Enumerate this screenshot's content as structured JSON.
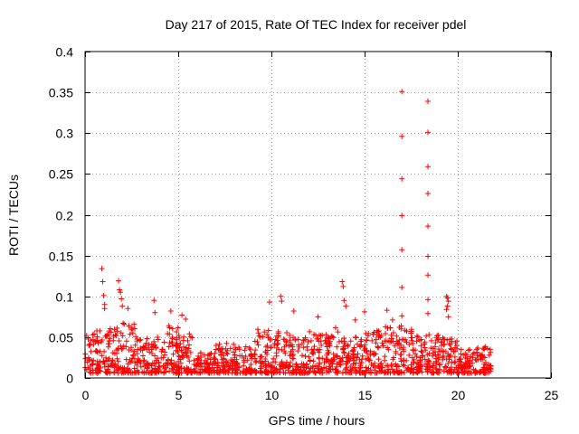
{
  "chart_data": {
    "type": "scatter",
    "title": "Day 217 of 2015, Rate Of TEC Index for receiver pdel",
    "xlabel": "GPS time / hours",
    "ylabel": "ROTI / TECUs",
    "xlim": [
      0,
      25
    ],
    "ylim": [
      0,
      0.4
    ],
    "xticks": [
      0,
      5,
      10,
      15,
      20,
      25
    ],
    "yticks": [
      0,
      0.05,
      0.1,
      0.15,
      0.2,
      0.25,
      0.3,
      0.35,
      0.4
    ],
    "xtick_labels": [
      "0",
      "5",
      "10",
      "15",
      "20",
      "25"
    ],
    "ytick_labels": [
      "0",
      "0.05",
      "0.1",
      "0.15",
      "0.2",
      "0.25",
      "0.3",
      "0.35",
      "0.4"
    ],
    "grid": true,
    "marker": "+",
    "color": "#ff0000",
    "series": [
      {
        "name": "ROTI",
        "points": [
          [
            0.9,
            0.134
          ],
          [
            0.95,
            0.118
          ],
          [
            1.0,
            0.101
          ],
          [
            1.05,
            0.09
          ],
          [
            1.05,
            0.085
          ],
          [
            1.8,
            0.119
          ],
          [
            1.85,
            0.108
          ],
          [
            1.9,
            0.105
          ],
          [
            1.95,
            0.097
          ],
          [
            2.0,
            0.088
          ],
          [
            2.3,
            0.085
          ],
          [
            3.7,
            0.095
          ],
          [
            3.75,
            0.08
          ],
          [
            4.6,
            0.082
          ],
          [
            5.2,
            0.077
          ],
          [
            5.4,
            0.072
          ],
          [
            9.9,
            0.093
          ],
          [
            10.5,
            0.1
          ],
          [
            10.55,
            0.094
          ],
          [
            11.2,
            0.082
          ],
          [
            12.5,
            0.075
          ],
          [
            13.8,
            0.118
          ],
          [
            13.85,
            0.112
          ],
          [
            13.9,
            0.095
          ],
          [
            14.0,
            0.088
          ],
          [
            14.5,
            0.071
          ],
          [
            15.0,
            0.081
          ],
          [
            16.2,
            0.083
          ],
          [
            16.5,
            0.071
          ],
          [
            17.0,
            0.351
          ],
          [
            17.0,
            0.296
          ],
          [
            17.0,
            0.244
          ],
          [
            17.0,
            0.199
          ],
          [
            17.0,
            0.157
          ],
          [
            17.0,
            0.111
          ],
          [
            17.0,
            0.076
          ],
          [
            18.4,
            0.339
          ],
          [
            18.4,
            0.301
          ],
          [
            18.4,
            0.259
          ],
          [
            18.4,
            0.226
          ],
          [
            18.4,
            0.186
          ],
          [
            18.4,
            0.149
          ],
          [
            18.4,
            0.126
          ],
          [
            18.4,
            0.096
          ],
          [
            18.4,
            0.079
          ],
          [
            19.4,
            0.1
          ],
          [
            19.45,
            0.098
          ],
          [
            19.5,
            0.094
          ],
          [
            19.45,
            0.088
          ],
          [
            19.4,
            0.084
          ],
          [
            19.5,
            0.075
          ]
        ]
      }
    ],
    "dense_band": [
      {
        "x_start": 0,
        "x_end": 1,
        "y_max": 0.058
      },
      {
        "x_start": 1,
        "x_end": 2,
        "y_max": 0.062
      },
      {
        "x_start": 2,
        "x_end": 3,
        "y_max": 0.068
      },
      {
        "x_start": 3,
        "x_end": 4,
        "y_max": 0.05
      },
      {
        "x_start": 4,
        "x_end": 5,
        "y_max": 0.065
      },
      {
        "x_start": 5,
        "x_end": 6,
        "y_max": 0.06
      },
      {
        "x_start": 6,
        "x_end": 7,
        "y_max": 0.032
      },
      {
        "x_start": 7,
        "x_end": 8,
        "y_max": 0.045
      },
      {
        "x_start": 8,
        "x_end": 9,
        "y_max": 0.04
      },
      {
        "x_start": 9,
        "x_end": 10,
        "y_max": 0.06
      },
      {
        "x_start": 10,
        "x_end": 11,
        "y_max": 0.065
      },
      {
        "x_start": 11,
        "x_end": 12,
        "y_max": 0.05
      },
      {
        "x_start": 12,
        "x_end": 13,
        "y_max": 0.058
      },
      {
        "x_start": 13,
        "x_end": 14,
        "y_max": 0.062
      },
      {
        "x_start": 14,
        "x_end": 15,
        "y_max": 0.05
      },
      {
        "x_start": 15,
        "x_end": 16,
        "y_max": 0.058
      },
      {
        "x_start": 16,
        "x_end": 17,
        "y_max": 0.065
      },
      {
        "x_start": 17,
        "x_end": 18,
        "y_max": 0.06
      },
      {
        "x_start": 18,
        "x_end": 19,
        "y_max": 0.055
      },
      {
        "x_start": 19,
        "x_end": 20,
        "y_max": 0.05
      },
      {
        "x_start": 20,
        "x_end": 21,
        "y_max": 0.035
      },
      {
        "x_start": 21,
        "x_end": 21.8,
        "y_max": 0.04
      }
    ]
  }
}
